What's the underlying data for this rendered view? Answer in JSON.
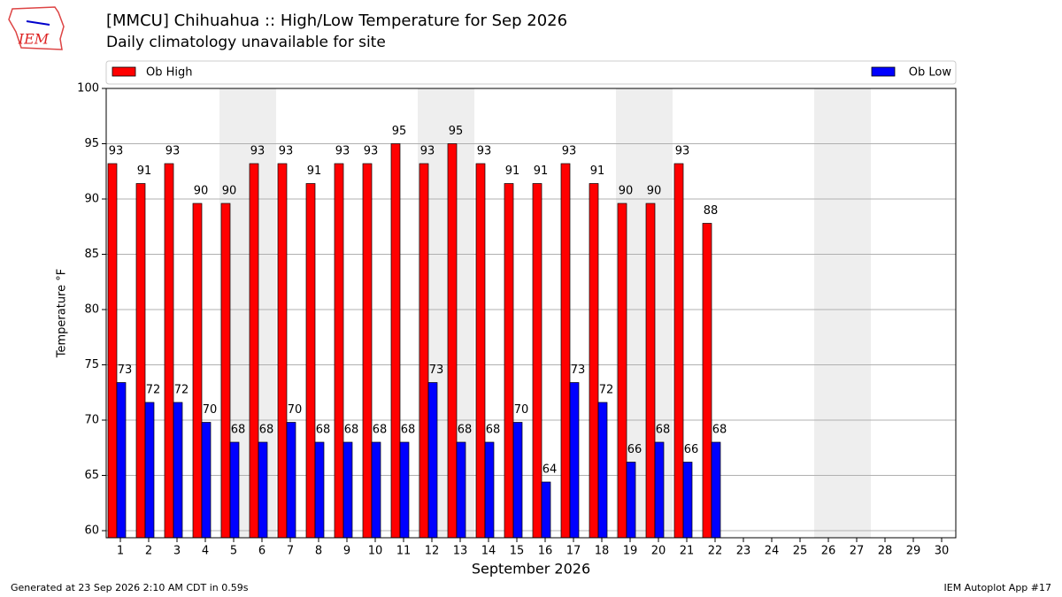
{
  "chart_data": {
    "type": "bar",
    "title": "[MMCU] Chihuahua :: High/Low Temperature for Sep 2026",
    "subtitle": "Daily climatology unavailable for site",
    "xlabel": "September 2026",
    "ylabel": "Temperature °F",
    "logo": "IEM",
    "footer_left": "Generated at 23 Sep 2026 2:10 AM CDT in 0.59s",
    "footer_right": "IEM Autoplot App #17",
    "categories": [
      "1",
      "2",
      "3",
      "4",
      "5",
      "6",
      "7",
      "8",
      "9",
      "10",
      "11",
      "12",
      "13",
      "14",
      "15",
      "16",
      "17",
      "18",
      "19",
      "20",
      "21",
      "22",
      "23",
      "24",
      "25",
      "26",
      "27",
      "28",
      "29",
      "30"
    ],
    "shaded_days": [
      5,
      6,
      12,
      13,
      19,
      20,
      26,
      27
    ],
    "series": [
      {
        "name": "Ob High",
        "color": "#ff0000",
        "values": [
          93.2,
          91.4,
          93.2,
          89.6,
          89.6,
          93.2,
          93.2,
          91.4,
          93.2,
          93.2,
          95.0,
          93.2,
          95.0,
          93.2,
          91.4,
          91.4,
          93.2,
          91.4,
          89.6,
          89.6,
          93.2,
          87.8,
          null,
          null,
          null,
          null,
          null,
          null,
          null,
          null
        ],
        "value_labels": [
          "93",
          "91",
          "93",
          "90",
          "90",
          "93",
          "93",
          "91",
          "93",
          "93",
          "95",
          "93",
          "95",
          "93",
          "91",
          "91",
          "93",
          "91",
          "90",
          "90",
          "93",
          "88",
          null,
          null,
          null,
          null,
          null,
          null,
          null,
          null
        ]
      },
      {
        "name": "Ob Low",
        "color": "#0000ff",
        "values": [
          73.4,
          71.6,
          71.6,
          69.8,
          68.0,
          68.0,
          69.8,
          68.0,
          68.0,
          68.0,
          68.0,
          73.4,
          68.0,
          68.0,
          69.8,
          64.4,
          73.4,
          71.6,
          66.2,
          68.0,
          66.2,
          68.0,
          null,
          null,
          null,
          null,
          null,
          null,
          null,
          null
        ],
        "value_labels": [
          "73",
          "72",
          "72",
          "70",
          "68",
          "68",
          "70",
          "68",
          "68",
          "68",
          "68",
          "73",
          "68",
          "68",
          "70",
          "64",
          "73",
          "72",
          "66",
          "68",
          "66",
          "68",
          null,
          null,
          null,
          null,
          null,
          null,
          null,
          null
        ]
      }
    ],
    "ylim": [
      59.36,
      100
    ],
    "yticks": [
      60,
      65,
      70,
      75,
      80,
      85,
      90,
      95,
      100
    ],
    "grid": true
  }
}
